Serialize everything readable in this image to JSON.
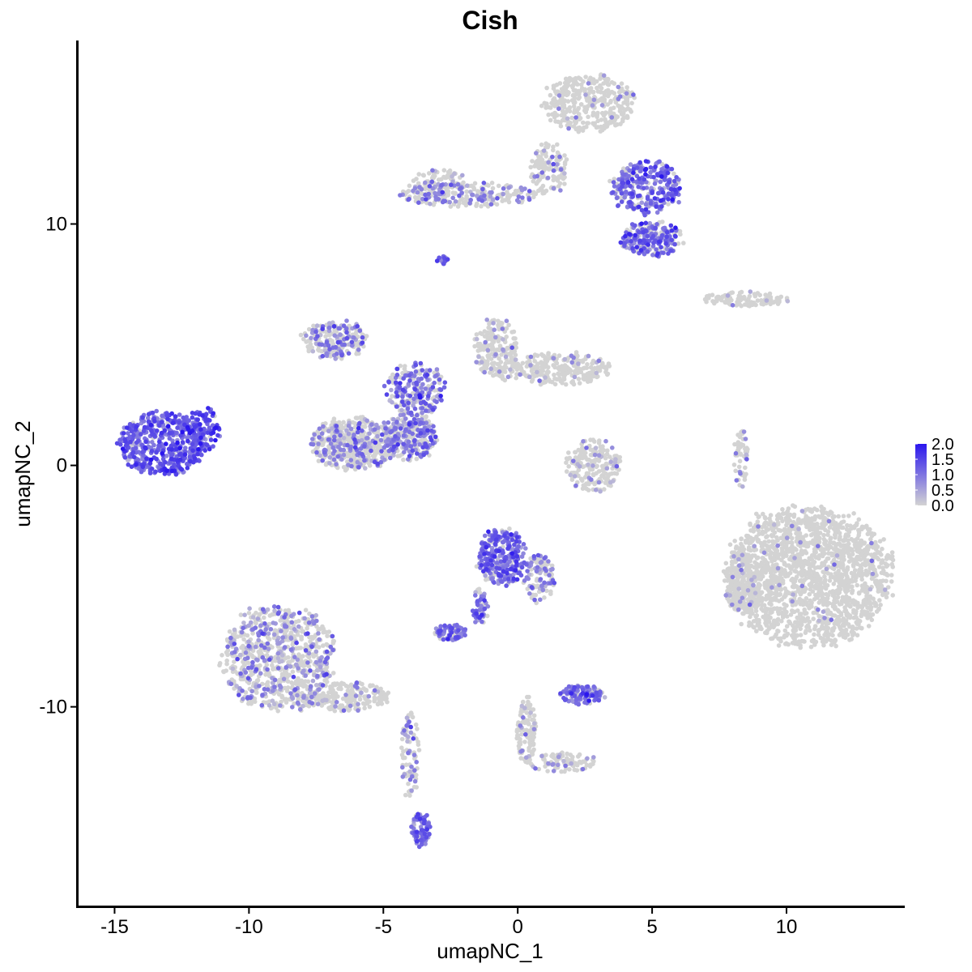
{
  "chart_data": {
    "type": "scatter",
    "title": "Cish",
    "xlabel": "umapNC_1",
    "ylabel": "umapNC_2",
    "xlim": [
      -16.4,
      14.4
    ],
    "ylim": [
      -18.3,
      17.6
    ],
    "x_ticks": [
      -15,
      -10,
      -5,
      0,
      5,
      10
    ],
    "x_tick_labels": [
      "-15",
      "-10",
      "-5",
      "0",
      "5",
      "10"
    ],
    "y_ticks": [
      -10,
      0,
      10
    ],
    "y_tick_labels": [
      "-10",
      "0",
      "10"
    ],
    "grid": false,
    "legend": {
      "placement": "right",
      "type": "colorbar",
      "min": 0.0,
      "max": 2.0,
      "low_color": "#d3d3d3",
      "high_color": "#2a16ee",
      "tick_values": [
        0.0,
        0.5,
        1.0,
        1.5,
        2.0
      ],
      "tick_labels": [
        "0.0",
        "0.5",
        "1.0",
        "1.5",
        "2.0"
      ]
    },
    "clusters": [
      {
        "name": "left-cluster",
        "cx": -13.2,
        "cy": 0.9,
        "rx": 1.6,
        "ry": 1.3,
        "n": 520,
        "expr": 1.1,
        "frac": 0.95
      },
      {
        "name": "left-cluster-tail",
        "cx": -11.7,
        "cy": 1.5,
        "rx": 0.6,
        "ry": 0.9,
        "n": 90,
        "expr": 1.4,
        "frac": 0.9
      },
      {
        "name": "bottom-left-large",
        "cx": -8.9,
        "cy": -8.0,
        "rx": 2.1,
        "ry": 2.2,
        "n": 800,
        "expr": 0.7,
        "frac": 0.3
      },
      {
        "name": "bottom-left-tail",
        "cx": -6.4,
        "cy": -9.6,
        "rx": 1.6,
        "ry": 0.6,
        "n": 220,
        "expr": 0.7,
        "frac": 0.15
      },
      {
        "name": "bottom-left-stem",
        "cx": -4.0,
        "cy": -12.0,
        "rx": 0.35,
        "ry": 1.8,
        "n": 80,
        "expr": 0.8,
        "frac": 0.3
      },
      {
        "name": "bottom-left-blob",
        "cx": -3.6,
        "cy": -15.1,
        "rx": 0.35,
        "ry": 0.7,
        "n": 90,
        "expr": 1.1,
        "frac": 0.9
      },
      {
        "name": "center-lower-blob",
        "cx": -6.1,
        "cy": 0.9,
        "rx": 1.6,
        "ry": 1.1,
        "n": 520,
        "expr": 0.8,
        "frac": 0.3
      },
      {
        "name": "center-lower-blob-right",
        "cx": -4.0,
        "cy": 1.2,
        "rx": 1.0,
        "ry": 1.0,
        "n": 260,
        "expr": 0.9,
        "frac": 0.55
      },
      {
        "name": "center-upper-left-arm",
        "cx": -6.8,
        "cy": 5.2,
        "rx": 1.2,
        "ry": 0.8,
        "n": 200,
        "expr": 0.8,
        "frac": 0.45
      },
      {
        "name": "center-hub",
        "cx": -3.8,
        "cy": 3.2,
        "rx": 1.1,
        "ry": 1.1,
        "n": 220,
        "expr": 1.0,
        "frac": 0.6
      },
      {
        "name": "center-upper-right-lobe",
        "cx": -0.8,
        "cy": 4.8,
        "rx": 0.8,
        "ry": 1.3,
        "n": 200,
        "expr": 0.6,
        "frac": 0.15
      },
      {
        "name": "center-right-arm",
        "cx": 1.6,
        "cy": 4.0,
        "rx": 1.8,
        "ry": 0.7,
        "n": 260,
        "expr": 0.6,
        "frac": 0.08
      },
      {
        "name": "top-right-top-lobe",
        "cx": 2.7,
        "cy": 15.0,
        "rx": 1.7,
        "ry": 1.2,
        "n": 360,
        "expr": 0.7,
        "frac": 0.06
      },
      {
        "name": "top-right-stem",
        "cx": 1.2,
        "cy": 12.3,
        "rx": 0.7,
        "ry": 1.1,
        "n": 120,
        "expr": 0.7,
        "frac": 0.1
      },
      {
        "name": "top-arm",
        "cx": -1.8,
        "cy": 11.2,
        "rx": 2.6,
        "ry": 0.5,
        "n": 230,
        "expr": 0.8,
        "frac": 0.35
      },
      {
        "name": "top-arm-left",
        "cx": -3.0,
        "cy": 11.7,
        "rx": 1.0,
        "ry": 0.6,
        "n": 90,
        "expr": 0.6,
        "frac": 0.15
      },
      {
        "name": "top-right-arm1",
        "cx": 4.8,
        "cy": 11.5,
        "rx": 1.3,
        "ry": 1.1,
        "n": 300,
        "expr": 1.1,
        "frac": 0.75
      },
      {
        "name": "top-right-arm2",
        "cx": 5.0,
        "cy": 9.4,
        "rx": 1.2,
        "ry": 0.7,
        "n": 220,
        "expr": 1.1,
        "frac": 0.7
      },
      {
        "name": "small-top-dot",
        "cx": -2.8,
        "cy": 8.5,
        "rx": 0.2,
        "ry": 0.2,
        "n": 20,
        "expr": 1.1,
        "frac": 0.9
      },
      {
        "name": "right-small-cluster",
        "cx": 8.5,
        "cy": 6.9,
        "rx": 1.7,
        "ry": 0.3,
        "n": 110,
        "expr": 0.5,
        "frac": 0.04
      },
      {
        "name": "middle-small-cluster",
        "cx": 2.8,
        "cy": 0.0,
        "rx": 1.0,
        "ry": 1.1,
        "n": 200,
        "expr": 0.6,
        "frac": 0.1
      },
      {
        "name": "right-large-cluster",
        "cx": 10.8,
        "cy": -4.6,
        "rx": 3.0,
        "ry": 2.9,
        "n": 1800,
        "expr": 0.6,
        "frac": 0.02
      },
      {
        "name": "right-large-left-edge",
        "cx": 8.3,
        "cy": -4.9,
        "rx": 0.6,
        "ry": 1.2,
        "n": 160,
        "expr": 0.6,
        "frac": 0.1
      },
      {
        "name": "right-thin-strip",
        "cx": 8.3,
        "cy": 0.3,
        "rx": 0.25,
        "ry": 1.2,
        "n": 50,
        "expr": 0.6,
        "frac": 0.1
      },
      {
        "name": "center-bottom-top-blob",
        "cx": -0.6,
        "cy": -3.8,
        "rx": 0.9,
        "ry": 1.2,
        "n": 280,
        "expr": 1.1,
        "frac": 0.9
      },
      {
        "name": "center-bottom-right-arm",
        "cx": 0.8,
        "cy": -4.7,
        "rx": 0.6,
        "ry": 1.0,
        "n": 100,
        "expr": 0.8,
        "frac": 0.5
      },
      {
        "name": "center-bottom-left-arm",
        "cx": -1.4,
        "cy": -5.9,
        "rx": 0.3,
        "ry": 0.9,
        "n": 60,
        "expr": 1.0,
        "frac": 0.7
      },
      {
        "name": "center-bottom-lower-blob",
        "cx": -2.5,
        "cy": -6.9,
        "rx": 0.6,
        "ry": 0.35,
        "n": 90,
        "expr": 1.0,
        "frac": 0.7
      },
      {
        "name": "bottom-middle-blob",
        "cx": 2.4,
        "cy": -9.5,
        "rx": 0.8,
        "ry": 0.4,
        "n": 120,
        "expr": 1.0,
        "frac": 0.8
      },
      {
        "name": "bottom-middle-stem",
        "cx": 0.3,
        "cy": -11.0,
        "rx": 0.35,
        "ry": 1.4,
        "n": 110,
        "expr": 0.6,
        "frac": 0.08
      },
      {
        "name": "bottom-middle-arm",
        "cx": 1.6,
        "cy": -12.3,
        "rx": 1.3,
        "ry": 0.4,
        "n": 90,
        "expr": 0.7,
        "frac": 0.15
      }
    ]
  }
}
